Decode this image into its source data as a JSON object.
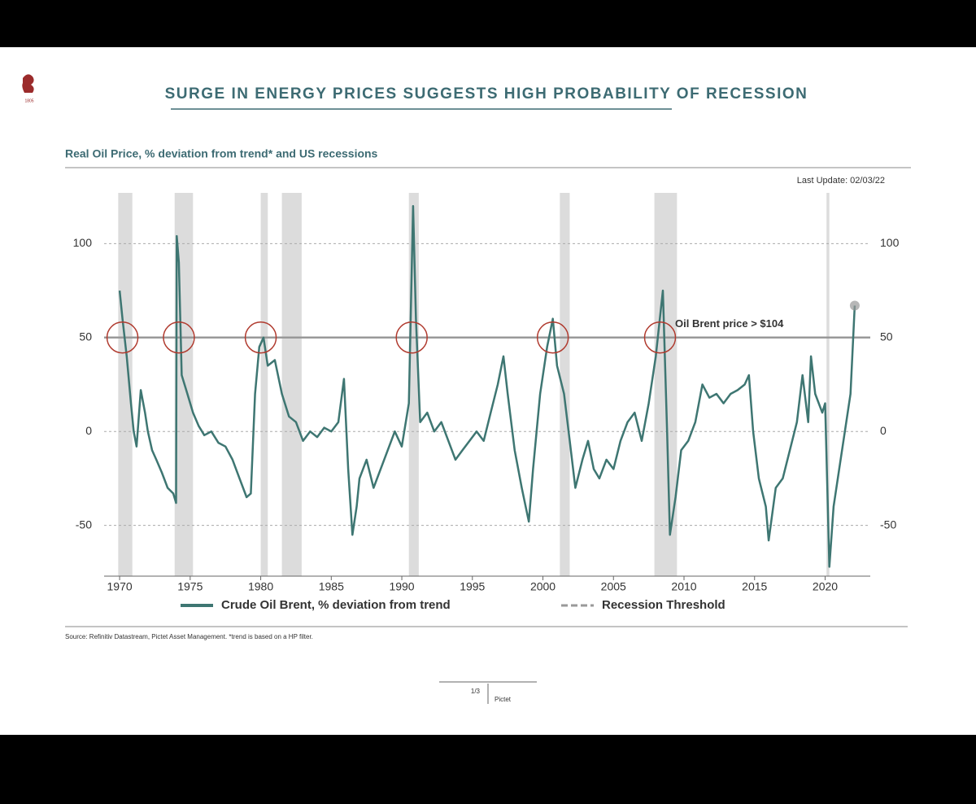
{
  "logo": "1805",
  "chart_data": {
    "type": "line",
    "title": "SURGE IN ENERGY PRICES SUGGESTS HIGH PROBABILITY OF RECESSION",
    "subtitle": "Real Oil Price, % deviation from trend* and US recessions",
    "last_update": "Last Update: 02/03/22",
    "annotation": "Oil Brent price > $104",
    "source": "Source: Refinitiv Datastream, Pictet Asset Management. *trend is based on a HP filter.",
    "xlim": [
      1968.9,
      2023.2
    ],
    "ylim": [
      -77,
      127
    ],
    "xticks": [
      1970,
      1975,
      1980,
      1985,
      1990,
      1995,
      2000,
      2005,
      2010,
      2015,
      2020
    ],
    "yticks": [
      -50,
      0,
      50,
      100
    ],
    "threshold": 50,
    "threshold_name": "Recession Threshold",
    "recessions": [
      [
        1969.9,
        1970.9
      ],
      [
        1973.9,
        1975.2
      ],
      [
        1980.0,
        1980.5
      ],
      [
        1981.5,
        1982.9
      ],
      [
        1990.5,
        1991.2
      ],
      [
        2001.2,
        2001.9
      ],
      [
        2007.9,
        2009.5
      ],
      [
        2020.1,
        2020.3
      ]
    ],
    "circled_years": [
      1970.2,
      1974.2,
      1980.0,
      1990.7,
      2000.7,
      2008.3
    ],
    "series": [
      {
        "name": "Crude Oil Brent, % deviation from trend",
        "color": "#3e7672",
        "x": [
          1970.0,
          1970.2,
          1970.5,
          1970.8,
          1971.0,
          1971.2,
          1971.5,
          1971.8,
          1972.0,
          1972.3,
          1972.6,
          1973.0,
          1973.4,
          1973.8,
          1974.0,
          1974.05,
          1974.2,
          1974.4,
          1974.8,
          1975.2,
          1975.6,
          1976.0,
          1976.5,
          1977.0,
          1977.5,
          1978.0,
          1978.5,
          1979.0,
          1979.3,
          1979.6,
          1979.9,
          1980.2,
          1980.5,
          1981.0,
          1981.5,
          1982.0,
          1982.5,
          1983.0,
          1983.5,
          1984.0,
          1984.5,
          1985.0,
          1985.5,
          1985.9,
          1986.2,
          1986.5,
          1986.8,
          1987.0,
          1987.5,
          1988.0,
          1988.5,
          1989.0,
          1989.5,
          1990.0,
          1990.5,
          1990.8,
          1991.0,
          1991.3,
          1991.8,
          1992.3,
          1992.8,
          1993.3,
          1993.8,
          1994.3,
          1994.8,
          1995.3,
          1995.8,
          1996.3,
          1996.8,
          1997.2,
          1997.5,
          1998.0,
          1998.5,
          1999.0,
          1999.3,
          1999.8,
          2000.3,
          2000.7,
          2001.0,
          2001.5,
          2001.9,
          2002.3,
          2002.8,
          2003.2,
          2003.6,
          2004.0,
          2004.5,
          2005.0,
          2005.5,
          2006.0,
          2006.5,
          2007.0,
          2007.5,
          2008.0,
          2008.5,
          2008.8,
          2009.0,
          2009.4,
          2009.8,
          2010.3,
          2010.8,
          2011.3,
          2011.8,
          2012.3,
          2012.8,
          2013.3,
          2013.8,
          2014.3,
          2014.6,
          2014.9,
          2015.3,
          2015.8,
          2016.0,
          2016.5,
          2017.0,
          2017.5,
          2018.0,
          2018.4,
          2018.8,
          2019.0,
          2019.3,
          2019.8,
          2020.0,
          2020.3,
          2020.6,
          2021.0,
          2021.5,
          2021.8,
          2022.1
        ],
        "values": [
          75,
          60,
          40,
          15,
          0,
          -8,
          22,
          10,
          0,
          -10,
          -15,
          -22,
          -30,
          -33,
          -38,
          104,
          90,
          30,
          20,
          10,
          3,
          -2,
          0,
          -6,
          -8,
          -15,
          -25,
          -35,
          -33,
          20,
          45,
          50,
          35,
          38,
          20,
          8,
          5,
          -5,
          0,
          -3,
          2,
          0,
          5,
          28,
          -20,
          -55,
          -40,
          -25,
          -15,
          -30,
          -20,
          -10,
          0,
          -8,
          15,
          120,
          60,
          5,
          10,
          0,
          5,
          -5,
          -15,
          -10,
          -5,
          0,
          -5,
          10,
          25,
          40,
          20,
          -10,
          -30,
          -48,
          -20,
          20,
          45,
          60,
          35,
          20,
          -5,
          -30,
          -15,
          -5,
          -20,
          -25,
          -15,
          -20,
          -5,
          5,
          10,
          -5,
          15,
          40,
          75,
          0,
          -55,
          -35,
          -10,
          -5,
          5,
          25,
          18,
          20,
          15,
          20,
          22,
          25,
          30,
          0,
          -25,
          -40,
          -58,
          -30,
          -25,
          -10,
          5,
          30,
          5,
          40,
          20,
          10,
          15,
          -72,
          -40,
          -20,
          5,
          20,
          67
        ]
      }
    ]
  },
  "footer": {
    "page": "1/3",
    "brand": "Pictet"
  }
}
